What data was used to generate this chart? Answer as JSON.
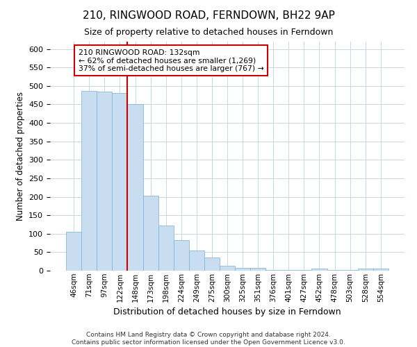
{
  "title": "210, RINGWOOD ROAD, FERNDOWN, BH22 9AP",
  "subtitle": "Size of property relative to detached houses in Ferndown",
  "xlabel": "Distribution of detached houses by size in Ferndown",
  "ylabel": "Number of detached properties",
  "bar_labels": [
    "46sqm",
    "71sqm",
    "97sqm",
    "122sqm",
    "148sqm",
    "173sqm",
    "198sqm",
    "224sqm",
    "249sqm",
    "275sqm",
    "300sqm",
    "325sqm",
    "351sqm",
    "376sqm",
    "401sqm",
    "427sqm",
    "452sqm",
    "478sqm",
    "503sqm",
    "528sqm",
    "554sqm"
  ],
  "bar_values": [
    105,
    487,
    484,
    481,
    450,
    202,
    122,
    82,
    55,
    36,
    14,
    8,
    8,
    1,
    1,
    1,
    5,
    1,
    1,
    5,
    5
  ],
  "bar_color": "#c9ddf0",
  "bar_edge_color": "#7aafd4",
  "vline_color": "#cc0000",
  "ylim": [
    0,
    620
  ],
  "yticks": [
    0,
    50,
    100,
    150,
    200,
    250,
    300,
    350,
    400,
    450,
    500,
    550,
    600
  ],
  "annotation_text": "210 RINGWOOD ROAD: 132sqm\n← 62% of detached houses are smaller (1,269)\n37% of semi-detached houses are larger (767) →",
  "annotation_box_color": "#ffffff",
  "annotation_box_edge": "#cc0000",
  "footer1": "Contains HM Land Registry data © Crown copyright and database right 2024.",
  "footer2": "Contains public sector information licensed under the Open Government Licence v3.0."
}
